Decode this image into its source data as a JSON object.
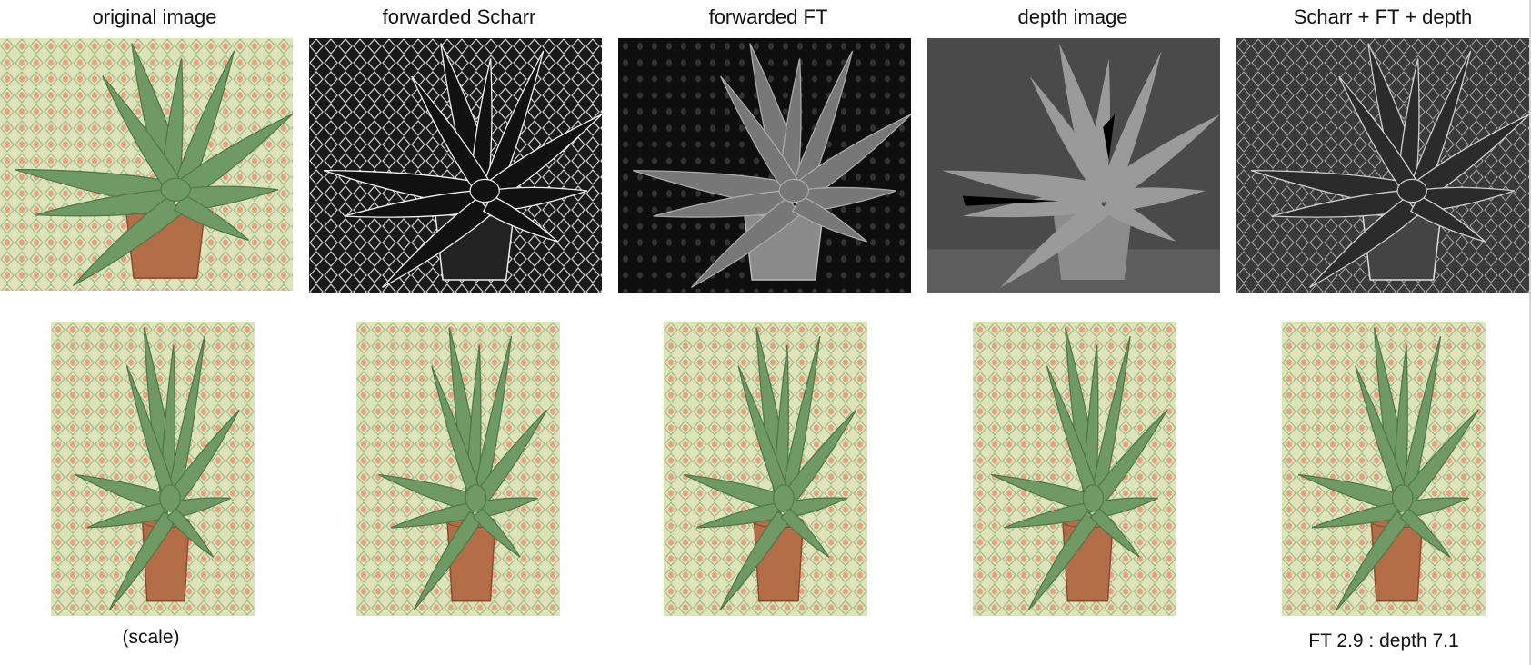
{
  "columns": [
    {
      "title": "original image",
      "top_style": "color"
    },
    {
      "title": "forwarded Scharr",
      "top_style": "scharr"
    },
    {
      "title": "forwarded FT",
      "top_style": "ft"
    },
    {
      "title": "depth image",
      "top_style": "depth"
    },
    {
      "title": "Scharr + FT + depth",
      "top_style": "combined"
    }
  ],
  "captions": {
    "scale": "(scale)",
    "ratio": "FT 2.9 : depth 7.1"
  },
  "colors": {
    "fabric": "#dfe3b8",
    "leaf": "#6f9a63",
    "pot": "#b46e47"
  }
}
